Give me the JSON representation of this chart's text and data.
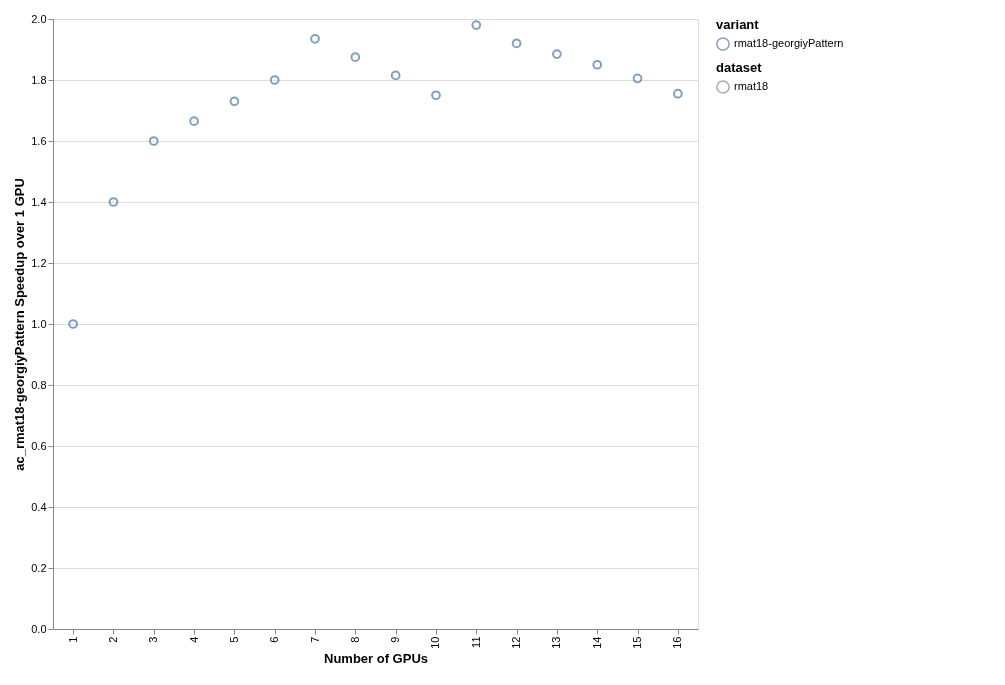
{
  "chart_data": {
    "type": "scatter",
    "xlabel": "Number of GPUs",
    "ylabel": "ac_rmat18-georgiyPattern Speedup over 1 GPU",
    "legend_title": "variant",
    "categories": [
      "1",
      "2",
      "3",
      "4",
      "5",
      "6",
      "7",
      "8",
      "9",
      "10",
      "11",
      "12",
      "13",
      "14",
      "15",
      "16"
    ],
    "series": [
      {
        "name": "rmat18-georgiyPattern",
        "color": "#4c78a8",
        "values": [
          1.0,
          1.4,
          1.6,
          1.665,
          1.73,
          1.8,
          1.935,
          1.875,
          1.815,
          1.75,
          1.98,
          1.92,
          1.885,
          1.85,
          1.805,
          1.755
        ]
      }
    ],
    "annotations": [
      "dataset",
      "rmat18"
    ],
    "ylim": [
      0,
      2
    ],
    "yticks": [
      {
        "value": 0,
        "label": "0.0"
      },
      0.2,
      0.4,
      0.6,
      0.8,
      {
        "value": 1,
        "label": "1.0"
      },
      1.2,
      1.4,
      1.6,
      1.8,
      {
        "value": 2,
        "label": "2.0"
      }
    ],
    "grid": "y",
    "legend": "top right",
    "marker": "circle"
  }
}
